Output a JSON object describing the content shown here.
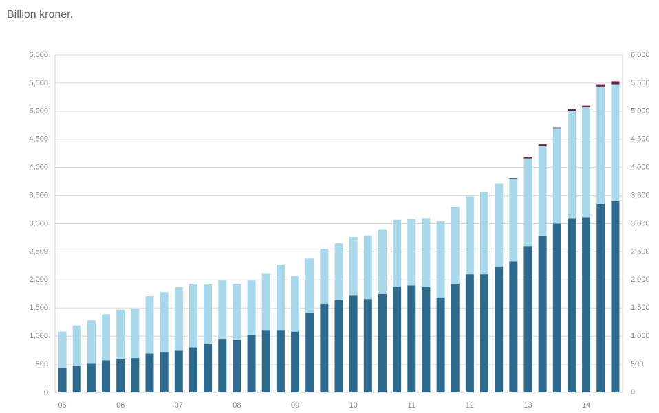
{
  "chart_data": {
    "type": "stacked_bar",
    "title": "Billion kroner.",
    "categories": [
      "05",
      null,
      null,
      null,
      "06",
      null,
      null,
      null,
      "07",
      null,
      null,
      null,
      "08",
      null,
      null,
      null,
      "09",
      null,
      null,
      null,
      "10",
      null,
      null,
      null,
      "11",
      null,
      null,
      null,
      "12",
      null,
      null,
      null,
      "13",
      null,
      null,
      null,
      "14",
      null,
      null
    ],
    "series": [
      {
        "color": "#2e6a8e",
        "values": [
          430,
          470,
          520,
          570,
          590,
          610,
          690,
          720,
          740,
          800,
          860,
          940,
          930,
          1020,
          1110,
          1110,
          1080,
          1420,
          1580,
          1640,
          1720,
          1660,
          1750,
          1880,
          1900,
          1870,
          1690,
          1930,
          2100,
          2100,
          2240,
          2330,
          2600,
          2780,
          3000,
          3100,
          3110,
          3350,
          3400
        ]
      },
      {
        "color": "#a9d8ea",
        "values": [
          650,
          720,
          760,
          820,
          880,
          880,
          1020,
          1060,
          1130,
          1130,
          1070,
          1050,
          1000,
          970,
          1010,
          1160,
          990,
          960,
          970,
          1010,
          1040,
          1130,
          1150,
          1190,
          1180,
          1230,
          1350,
          1370,
          1390,
          1460,
          1470,
          1470,
          1560,
          1600,
          1700,
          1910,
          1960,
          2090,
          2080
        ]
      },
      {
        "color": "#6b2140",
        "values": [
          0,
          0,
          0,
          0,
          0,
          0,
          0,
          0,
          0,
          0,
          0,
          0,
          0,
          0,
          0,
          0,
          0,
          0,
          0,
          0,
          0,
          0,
          0,
          0,
          0,
          0,
          0,
          0,
          0,
          0,
          0,
          10,
          30,
          30,
          10,
          30,
          30,
          40,
          50
        ]
      }
    ],
    "ylim": [
      0,
      6000
    ],
    "yticks": [
      0,
      500,
      {
        "value": 1000,
        "label": "1,000"
      },
      {
        "value": 1500,
        "label": "1,500"
      },
      {
        "value": 2000,
        "label": "2,000"
      },
      {
        "value": 2500,
        "label": "2,500"
      },
      {
        "value": 3000,
        "label": "3,000"
      },
      {
        "value": 3500,
        "label": "3,500"
      },
      {
        "value": 4000,
        "label": "4,000"
      },
      {
        "value": 4500,
        "label": "4,500"
      },
      {
        "value": 5000,
        "label": "5,000"
      },
      {
        "value": 5500,
        "label": "5,500"
      },
      {
        "value": 6000,
        "label": "6,000"
      }
    ],
    "y2lim": [
      0,
      6000
    ],
    "y2ticks": [
      0,
      500,
      {
        "value": 1000,
        "label": "1,000"
      },
      {
        "value": 1500,
        "label": "1,500"
      },
      {
        "value": 2000,
        "label": "2,000"
      },
      {
        "value": 2500,
        "label": "2,500"
      },
      {
        "value": 3000,
        "label": "3,000"
      },
      {
        "value": 3500,
        "label": "3,500"
      },
      {
        "value": 4000,
        "label": "4,000"
      },
      {
        "value": 4500,
        "label": "4,500"
      },
      {
        "value": 5000,
        "label": "5,000"
      },
      {
        "value": 5500,
        "label": "5,500"
      },
      {
        "value": 6000,
        "label": "6,000"
      }
    ],
    "grid": true
  }
}
